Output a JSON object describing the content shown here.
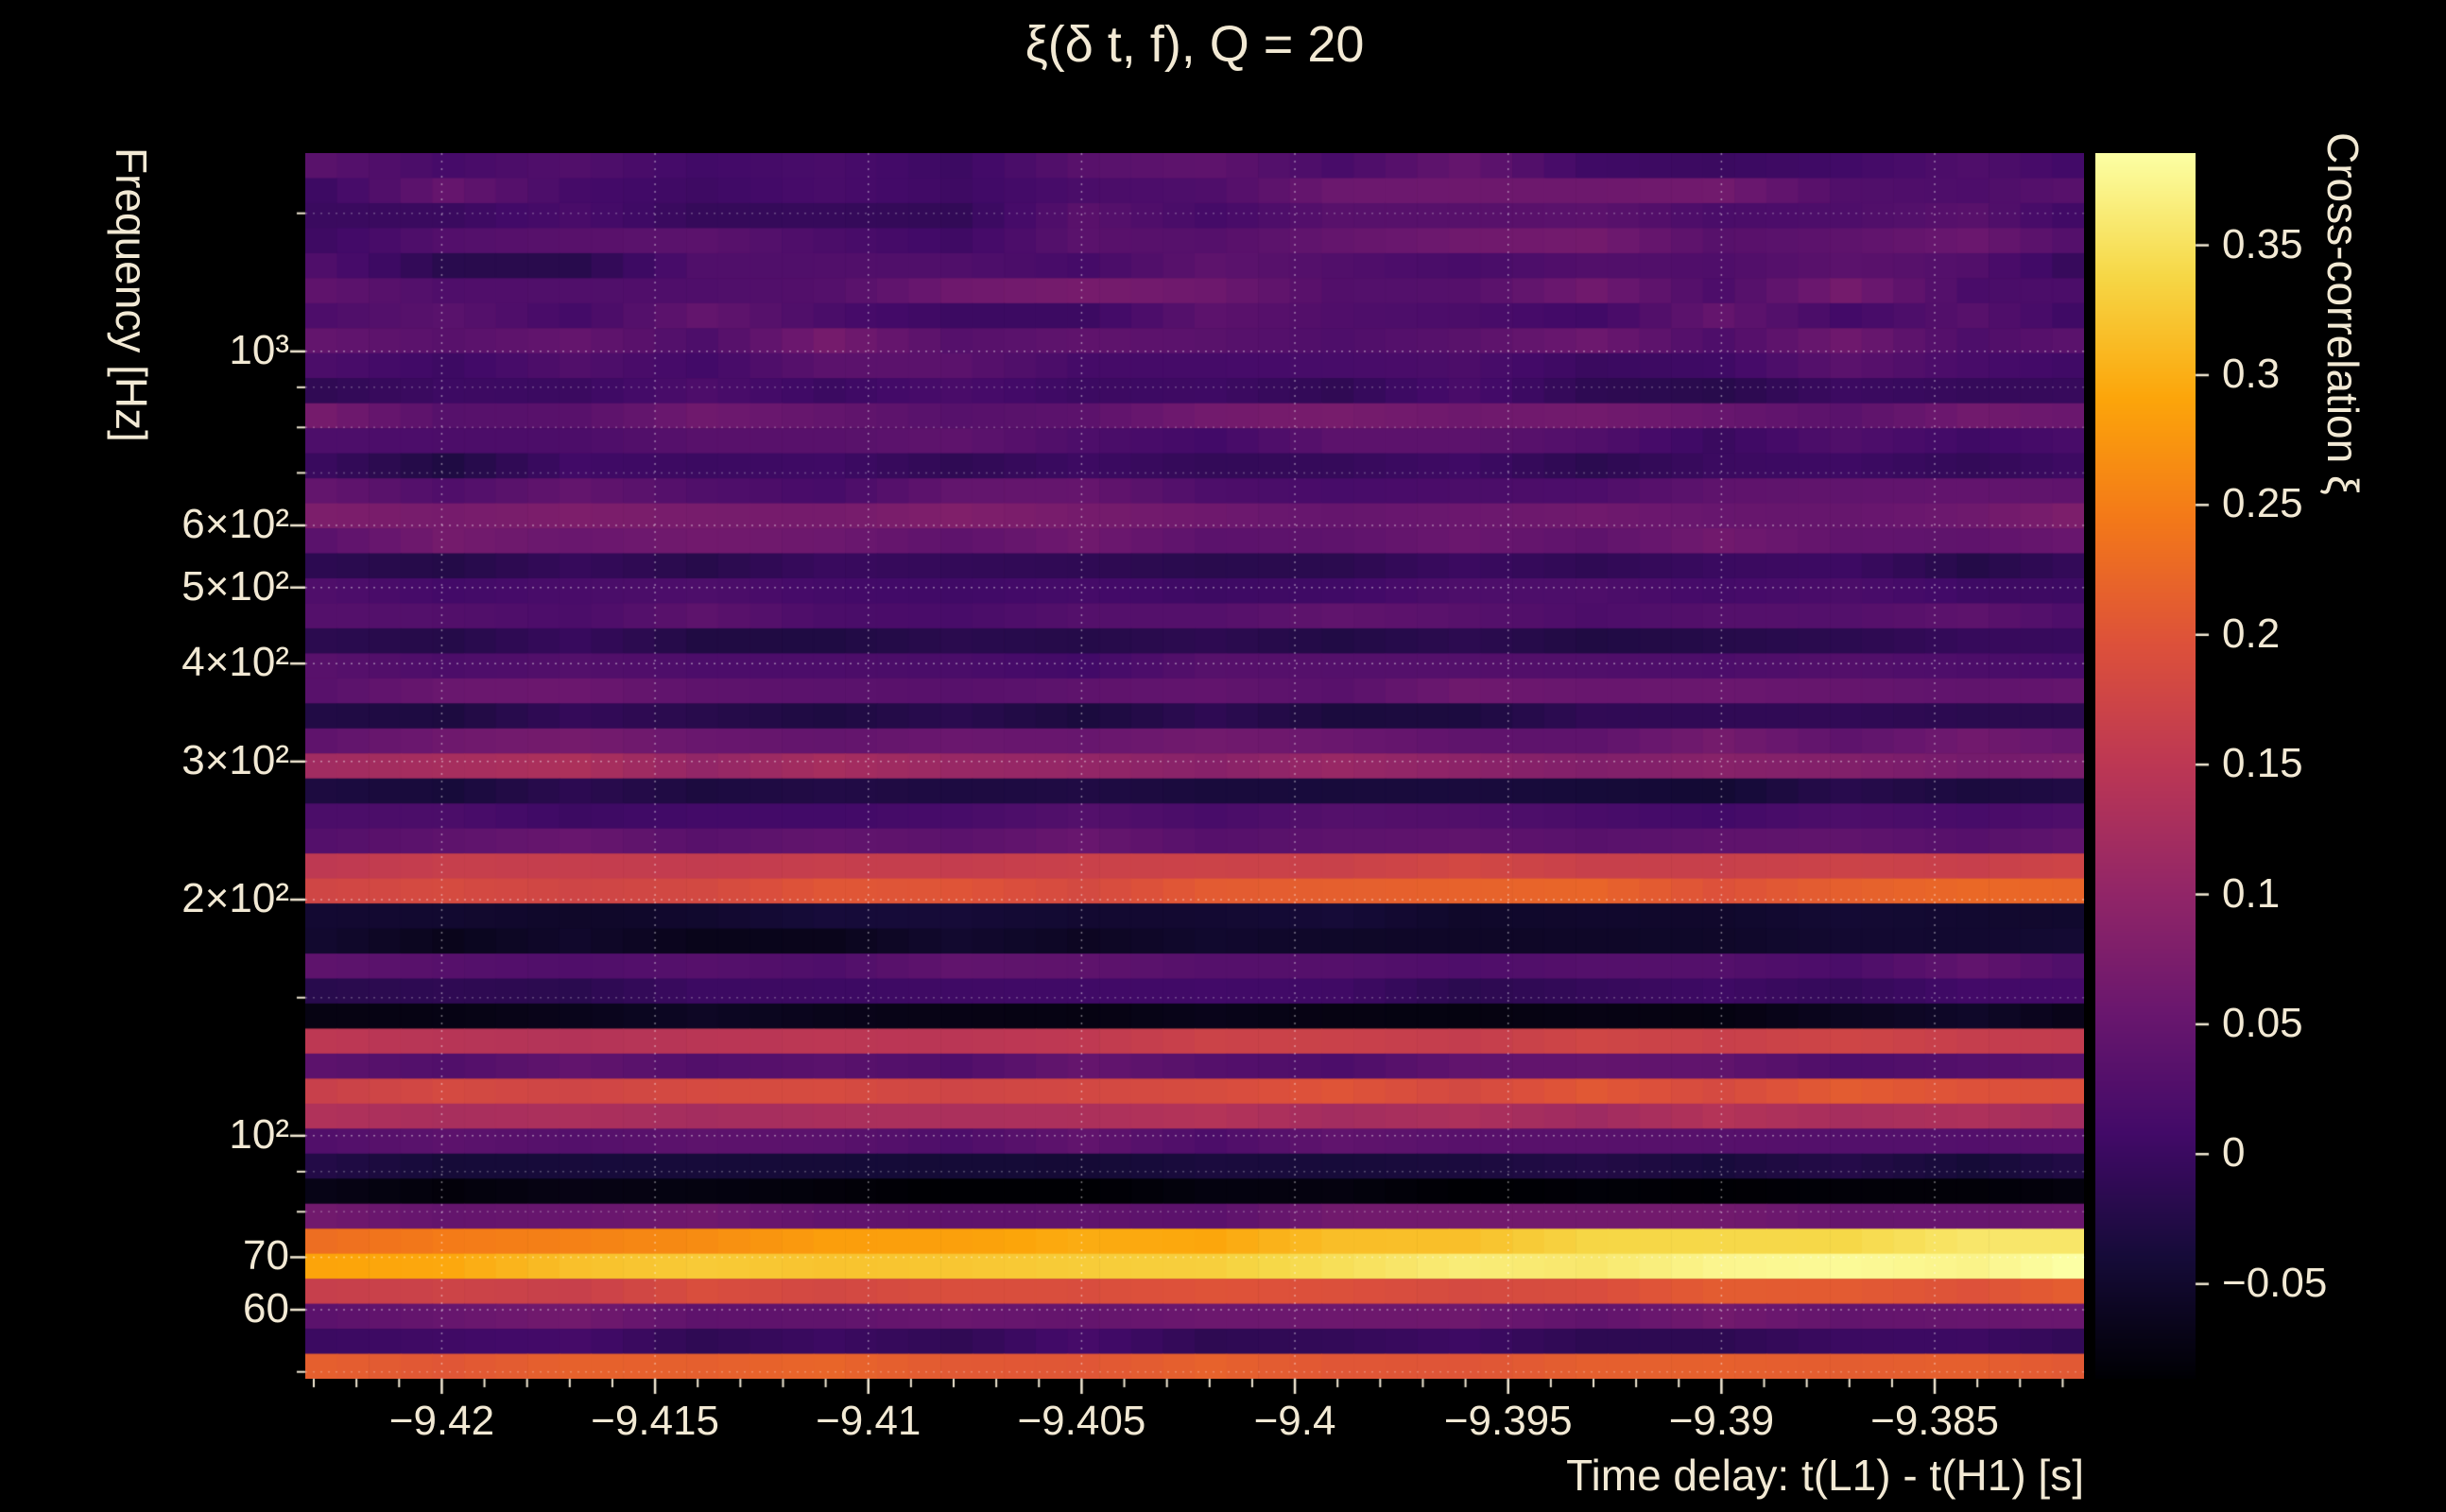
{
  "figure": {
    "style": {
      "background_color": "#000000",
      "text_color": "#f2e9d4",
      "gridline_color": "#ffffff"
    }
  },
  "chart_data": {
    "type": "heatmap",
    "title": "ξ(δ t, f), Q = 20",
    "xlabel": "Time delay: t(L1) - t(H1) [s]",
    "ylabel": "Frequency [Hz]",
    "colorbar_label": "Cross-correlation ξ",
    "x_range": [
      -9.4232,
      -9.3815
    ],
    "x_ticks": [
      -9.42,
      -9.415,
      -9.41,
      -9.405,
      -9.4,
      -9.395,
      -9.39,
      -9.385
    ],
    "x_tick_labels": [
      "−9.42",
      "−9.415",
      "−9.41",
      "−9.405",
      "−9.4",
      "−9.395",
      "−9.39",
      "−9.385"
    ],
    "x_minor_tick_step": 0.001,
    "y_scale": "log",
    "y_range_hz": [
      49,
      1790
    ],
    "y_major_ticks_hz": [
      1000,
      600,
      500,
      400,
      300,
      200,
      100,
      70,
      60
    ],
    "y_tick_labels": [
      "10³",
      "6×10²",
      "5×10²",
      "4×10²",
      "3×10²",
      "2×10²",
      "10²",
      "70",
      "60"
    ],
    "y_minor_ticks_hz": [
      1500,
      900,
      800,
      700,
      150,
      90,
      80,
      50
    ],
    "colorbar": {
      "vmin": -0.0865,
      "vmax": 0.3855,
      "ticks": [
        0.35,
        0.3,
        0.25,
        0.2,
        0.15,
        0.1,
        0.05,
        0,
        -0.05
      ],
      "tick_labels": [
        "0.35",
        "0.3",
        "0.25",
        "0.2",
        "0.15",
        "0.1",
        "0.05",
        "0",
        "−0.05"
      ]
    },
    "colormap": "inferno",
    "colormap_stops": [
      [
        0,
        0,
        0,
        4
      ],
      [
        0.1,
        22,
        11,
        57
      ],
      [
        0.2,
        66,
        10,
        104
      ],
      [
        0.3,
        106,
        23,
        110
      ],
      [
        0.4,
        147,
        38,
        103
      ],
      [
        0.5,
        188,
        55,
        84
      ],
      [
        0.6,
        221,
        81,
        58
      ],
      [
        0.7,
        243,
        120,
        25
      ],
      [
        0.8,
        252,
        165,
        10
      ],
      [
        0.9,
        246,
        215,
        70
      ],
      [
        1,
        252,
        255,
        164
      ]
    ],
    "grid_cols": 56,
    "noise_seed": 20,
    "row_values": [
      0.02,
      0.03,
      0.015,
      0.035,
      0.01,
      0.04,
      0.02,
      0.045,
      0.02,
      0.0,
      0.05,
      0.02,
      -0.01,
      0.03,
      0.065,
      0.05,
      -0.01,
      0.01,
      0.03,
      -0.015,
      0.02,
      0.045,
      -0.02,
      0.055,
      0.1,
      -0.03,
      0.015,
      0.04,
      0.17,
      0.2,
      -0.05,
      -0.055,
      0.03,
      -0.005,
      -0.065,
      0.16,
      0.035,
      0.19,
      0.13,
      0.03,
      -0.03,
      -0.08,
      0.05,
      0.3,
      0.34,
      0.19,
      0.05,
      0.0,
      0.21
    ],
    "row_gradient_lr": [
      0,
      0.02,
      0,
      0,
      0,
      0,
      0,
      0,
      0,
      0,
      0,
      0,
      0,
      0,
      0,
      0,
      0,
      0,
      0,
      0,
      0,
      0,
      0,
      0,
      -0.05,
      0,
      0,
      0,
      0.02,
      0.03,
      0,
      0,
      0,
      0,
      0,
      0.02,
      0,
      0.02,
      0,
      0,
      0,
      0,
      0,
      0.12,
      0.09,
      0.04,
      0,
      0,
      0
    ],
    "row_noise": [
      0.03,
      0.03,
      0.03,
      0.032,
      0.034,
      0.03,
      0.028,
      0.026,
      0.022,
      0.022,
      0.022,
      0.022,
      0.022,
      0.02,
      0.018,
      0.018,
      0.015,
      0.015,
      0.015,
      0.015,
      0.015,
      0.015,
      0.015,
      0.015,
      0.015,
      0.015,
      0.015,
      0.015,
      0.015,
      0.015,
      0.012,
      0.012,
      0.015,
      0.015,
      0.012,
      0.015,
      0.015,
      0.015,
      0.015,
      0.015,
      0.012,
      0.01,
      0.015,
      0.012,
      0.012,
      0.012,
      0.015,
      0.015,
      0.012
    ]
  }
}
